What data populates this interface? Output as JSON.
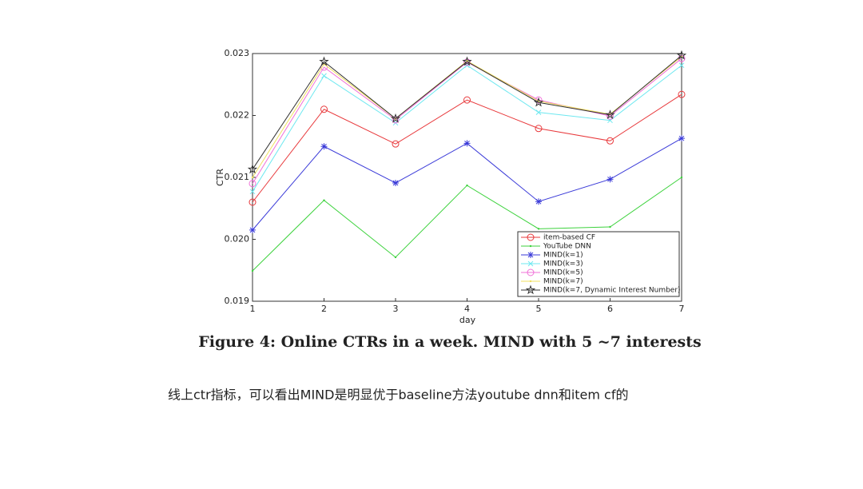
{
  "chart_data": {
    "type": "line",
    "xlabel": "day",
    "ylabel": "CTR",
    "x": [
      1,
      2,
      3,
      4,
      5,
      6,
      7
    ],
    "xlim": [
      1,
      7
    ],
    "xticks": [
      1,
      2,
      3,
      4,
      5,
      6,
      7
    ],
    "ylim": [
      0.019,
      0.023
    ],
    "yticks": [
      0.019,
      {
        "value": 0.02,
        "label": "0.020"
      },
      0.021,
      0.022,
      0.023
    ],
    "grid": false,
    "legend": "lower right",
    "series": [
      {
        "name": "item-based CF",
        "color": "#e8383b",
        "marker": "circle",
        "values": [
          0.0206,
          0.0221,
          0.02154,
          0.02225,
          0.02179,
          0.02159,
          0.02234
        ]
      },
      {
        "name": "YouTube DNN",
        "color": "#3cd23c",
        "marker": "dot",
        "values": [
          0.01949,
          0.02063,
          0.01971,
          0.02087,
          0.02017,
          0.0202,
          0.021
        ]
      },
      {
        "name": "MIND(k=1)",
        "color": "#3a3ad8",
        "marker": "asterisk",
        "values": [
          0.02015,
          0.0215,
          0.02091,
          0.02155,
          0.02061,
          0.02097,
          0.02163
        ]
      },
      {
        "name": "MIND(k=3)",
        "color": "#6ee8f0",
        "marker": "cross",
        "values": [
          0.02077,
          0.02264,
          0.02188,
          0.02281,
          0.02205,
          0.02192,
          0.02281
        ]
      },
      {
        "name": "MIND(k=5)",
        "color": "#f070d8",
        "marker": "circle",
        "values": [
          0.0209,
          0.02278,
          0.02193,
          0.02286,
          0.02225,
          0.02199,
          0.02292
        ]
      },
      {
        "name": "MIND(k=7)",
        "color": "#f0e060",
        "marker": "dot",
        "values": [
          0.021,
          0.02283,
          0.02195,
          0.02288,
          0.02223,
          0.02202,
          0.02295
        ]
      },
      {
        "name": "MIND(k=7, Dynamic Interest Number)",
        "color": "#333333",
        "marker": "star",
        "values": [
          0.02113,
          0.02287,
          0.02195,
          0.02287,
          0.02221,
          0.02201,
          0.02297
        ]
      }
    ]
  },
  "figure_caption": "Figure 4: Online CTRs in a week. MIND with 5 ~7 interests",
  "body_text": "线上ctr指标，可以看出MIND是明显优于baseline方法youtube dnn和item cf的"
}
